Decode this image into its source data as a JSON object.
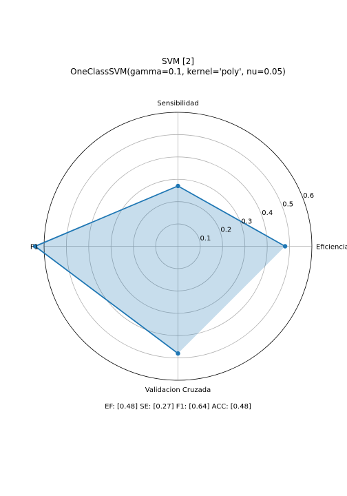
{
  "chart_data": {
    "type": "radar",
    "title": "SVM [2]",
    "subtitle": "OneClassSVM(gamma=0.1, kernel='poly', nu=0.05)",
    "categories": [
      "Eficiencia",
      "Sensibilidad",
      "F1",
      "Validacion Cruzada"
    ],
    "values": [
      0.48,
      0.27,
      0.64,
      0.48
    ],
    "closing_value": 0.48,
    "rmax": 0.6,
    "radial_ticks": [
      0.1,
      0.2,
      0.3,
      0.4,
      0.5,
      0.6
    ],
    "radial_tick_labels": [
      "0.1",
      "0.2",
      "0.3",
      "0.4",
      "0.5",
      "0.6"
    ],
    "grid": true,
    "line_color": "#1f77b4",
    "fill_color": "#1f77b4",
    "annotation": "EF: [0.48] SE: [0.27] F1: [0.64] ACC: [0.48]"
  }
}
